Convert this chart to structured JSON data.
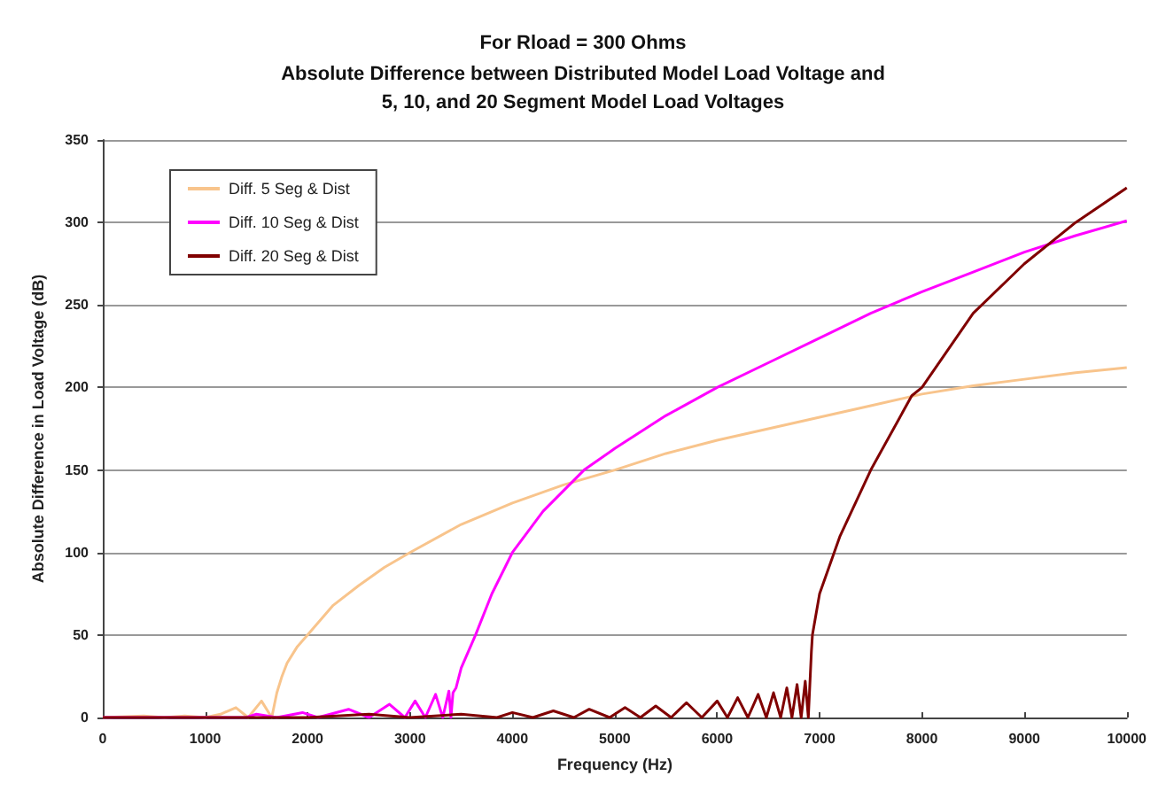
{
  "chart_data": {
    "type": "line",
    "title": "For Rload = 300 Ohms",
    "subtitle": "Absolute Difference between Distributed Model Load Voltage and\n5, 10, and 20 Segment Model Load Voltages",
    "xlabel": "Frequency (Hz)",
    "ylabel": "Absolute Difference in Load Voltage (dB)",
    "xlim": [
      0,
      10000
    ],
    "xticks": [
      0,
      1000,
      2000,
      3000,
      4000,
      5000,
      6000,
      7000,
      8000,
      9000,
      10000
    ],
    "ylim": [
      0,
      350
    ],
    "yticks": [
      0,
      50,
      100,
      150,
      200,
      250,
      300,
      350
    ],
    "grid": "y",
    "legend": "top left",
    "marker": "none",
    "line_style": "solid",
    "series": [
      {
        "name": "Diff. 5 Seg & Dist",
        "color": "#f8c48c",
        "x": [
          0,
          400,
          600,
          800,
          1000,
          1150,
          1300,
          1420,
          1550,
          1650,
          1700,
          1750,
          1800,
          1900,
          2000,
          2250,
          2500,
          2750,
          3000,
          3500,
          4000,
          4500,
          5000,
          5500,
          6000,
          6500,
          7000,
          7500,
          8000,
          8500,
          9000,
          9500,
          10000
        ],
        "values": [
          0,
          1,
          0,
          1,
          0,
          2,
          6,
          0,
          10,
          0,
          15,
          25,
          33,
          43,
          50,
          68,
          80,
          91,
          100,
          117,
          130,
          141,
          150,
          160,
          168,
          175,
          182,
          189,
          196,
          201,
          205,
          209,
          212
        ]
      },
      {
        "name": "Diff. 10 Seg & Dist",
        "color": "#ff00ff",
        "x": [
          0,
          1000,
          1400,
          1500,
          1700,
          1950,
          2100,
          2400,
          2600,
          2800,
          2950,
          3050,
          3150,
          3250,
          3320,
          3380,
          3400,
          3420,
          3450,
          3500,
          3640,
          3800,
          4000,
          4300,
          4700,
          5000,
          5500,
          6000,
          6500,
          7000,
          7500,
          8000,
          8500,
          9000,
          9500,
          10000
        ],
        "values": [
          0,
          0,
          0,
          2,
          0,
          3,
          0,
          5,
          0,
          8,
          0,
          10,
          0,
          14,
          0,
          16,
          0,
          15,
          18,
          30,
          50,
          75,
          100,
          125,
          150,
          163,
          183,
          200,
          215,
          230,
          245,
          258,
          270,
          282,
          292,
          301
        ]
      },
      {
        "name": "Diff. 20 Seg & Dist",
        "color": "#800000",
        "x": [
          0,
          2000,
          2600,
          3000,
          3500,
          3850,
          4000,
          4200,
          4400,
          4600,
          4750,
          4950,
          5100,
          5250,
          5400,
          5550,
          5700,
          5850,
          6000,
          6100,
          6200,
          6300,
          6400,
          6480,
          6550,
          6620,
          6680,
          6730,
          6780,
          6820,
          6860,
          6890,
          6920,
          6930,
          7000,
          7200,
          7500,
          7900,
          8000,
          8500,
          9000,
          9500,
          10000
        ],
        "values": [
          0,
          0,
          2,
          0,
          2,
          0,
          3,
          0,
          4,
          0,
          5,
          0,
          6,
          0,
          7,
          0,
          9,
          0,
          10,
          0,
          12,
          0,
          14,
          0,
          15,
          0,
          18,
          0,
          20,
          0,
          22,
          0,
          40,
          50,
          75,
          110,
          150,
          195,
          200,
          245,
          275,
          300,
          321
        ]
      }
    ]
  }
}
